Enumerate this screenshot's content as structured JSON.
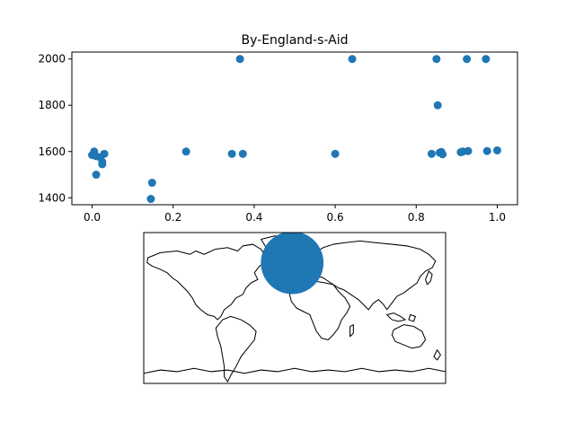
{
  "chart_data": [
    {
      "type": "scatter",
      "title": "By-England-s-Aid",
      "xlabel": "",
      "ylabel": "",
      "xlim": [
        -0.05,
        1.05
      ],
      "ylim": [
        1370,
        2030
      ],
      "xticks": [
        "0.0",
        "0.2",
        "0.4",
        "0.6",
        "0.8",
        "1.0"
      ],
      "yticks": [
        "1400",
        "1600",
        "1800",
        "2000"
      ],
      "grid": false,
      "color": "#1f77b4",
      "points": [
        {
          "x": 0.0,
          "y": 1585
        },
        {
          "x": 0.005,
          "y": 1600
        },
        {
          "x": 0.01,
          "y": 1580
        },
        {
          "x": 0.01,
          "y": 1500
        },
        {
          "x": 0.02,
          "y": 1575
        },
        {
          "x": 0.025,
          "y": 1555
        },
        {
          "x": 0.025,
          "y": 1545
        },
        {
          "x": 0.03,
          "y": 1590
        },
        {
          "x": 0.145,
          "y": 1395
        },
        {
          "x": 0.148,
          "y": 1465
        },
        {
          "x": 0.232,
          "y": 1600
        },
        {
          "x": 0.345,
          "y": 1590
        },
        {
          "x": 0.365,
          "y": 2000
        },
        {
          "x": 0.372,
          "y": 1590
        },
        {
          "x": 0.6,
          "y": 1590
        },
        {
          "x": 0.642,
          "y": 2000
        },
        {
          "x": 0.838,
          "y": 1590
        },
        {
          "x": 0.85,
          "y": 2000
        },
        {
          "x": 0.853,
          "y": 1800
        },
        {
          "x": 0.858,
          "y": 1595
        },
        {
          "x": 0.862,
          "y": 1598
        },
        {
          "x": 0.865,
          "y": 1588
        },
        {
          "x": 0.91,
          "y": 1597
        },
        {
          "x": 0.915,
          "y": 1600
        },
        {
          "x": 0.925,
          "y": 2000
        },
        {
          "x": 0.928,
          "y": 1602
        },
        {
          "x": 0.972,
          "y": 2000
        },
        {
          "x": 0.975,
          "y": 1602
        },
        {
          "x": 1.0,
          "y": 1605
        }
      ]
    },
    {
      "type": "map",
      "projection": "equirectangular",
      "color": "#1f77b4",
      "marker": {
        "lon": -3,
        "lat": 54,
        "radius_deg": 21
      }
    }
  ]
}
